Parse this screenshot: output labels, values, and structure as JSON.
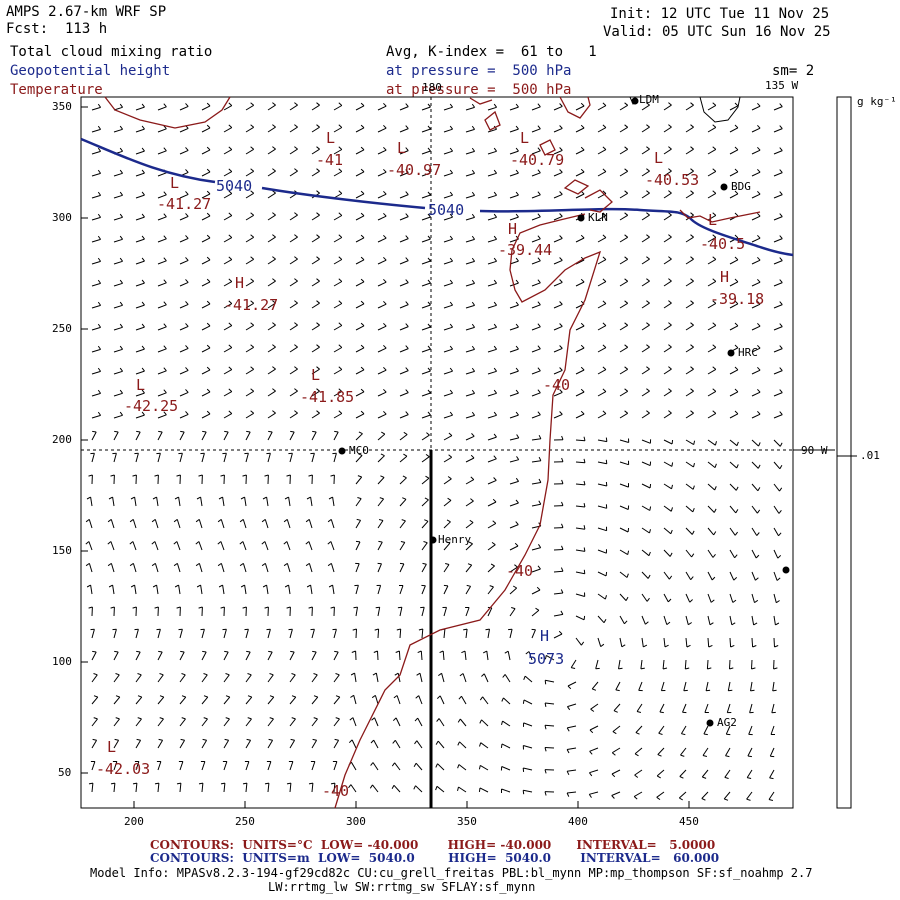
{
  "header": {
    "model": "AMPS 2.67-km WRF SP",
    "forecast": "Fcst:  113 h",
    "init": "Init: 12 UTC Tue 11 Nov 25",
    "valid": "Valid: 05 UTC Sun 16 Nov 25",
    "field1": "Total cloud mixing ratio",
    "field2": "Geopotential height",
    "field3": "Temperature",
    "avg": "Avg, K-index =  61 to   1",
    "pressure2": "at pressure =  500 hPa",
    "pressure3": "at pressure =  500 hPa",
    "smooth": "sm= 2"
  },
  "meridians": {
    "m180": "180",
    "m135": "135 W",
    "m90": "90 W"
  },
  "colorbar": {
    "unit": "g kg⁻¹",
    "value": ".01"
  },
  "y_ticks": [
    "350",
    "300",
    "250",
    "200",
    "150",
    "100",
    "50"
  ],
  "x_ticks": [
    "200",
    "250",
    "300",
    "350",
    "400",
    "450"
  ],
  "height_labels": {
    "h5040_left": "5040",
    "h5040_mid": "5040",
    "high_letter": "H",
    "high_value": "5073"
  },
  "temp_labels": [
    {
      "letter": "L",
      "value": "-41"
    },
    {
      "letter": "L",
      "value": "-40.97"
    },
    {
      "letter": "L",
      "value": "-40.79"
    },
    {
      "letter": "L",
      "value": "-40.53"
    },
    {
      "letter": "L",
      "value": "-41.27"
    },
    {
      "letter": "H",
      "value": "-39.44"
    },
    {
      "letter": "L",
      "value": "-40.5"
    },
    {
      "letter": "H",
      "value": "-39.18"
    },
    {
      "letter": "H",
      "value": "-41.27"
    },
    {
      "letter": "L",
      "value": "-42.25"
    },
    {
      "letter": "L",
      "value": "-41.85"
    },
    {
      "letter": "L",
      "value": "-42.03"
    }
  ],
  "contour_labels": {
    "c1": "-40",
    "c2": "-40",
    "c3": "-40"
  },
  "stations": {
    "ldm": "LDM",
    "bdg": "BDG",
    "kln": "KLN",
    "hrc": "HRC",
    "mco": "MCO",
    "henry": "Henry",
    "ag2": "AG2"
  },
  "footer": {
    "temp_contours": "CONTOURS:  UNITS=°C  LOW= -40.000       HIGH= -40.000      INTERVAL=   5.0000",
    "height_contours": "CONTOURS:  UNITS=m  LOW=  5040.0        HIGH=  5040.0       INTERVAL=   60.000",
    "model_info": "Model Info: MPASv8.2.3-194-gf29cd82c CU:cu_grell_freitas PBL:bl_mynn MP:mp_thompson SF:sf_noahmp 2.7",
    "model_info2": "LW:rrtmg_lw SW:rrtmg_sw SFLAY:sf_mynn"
  },
  "colors": {
    "height": "#1c2a8c",
    "temperature": "#8b1a1a"
  }
}
